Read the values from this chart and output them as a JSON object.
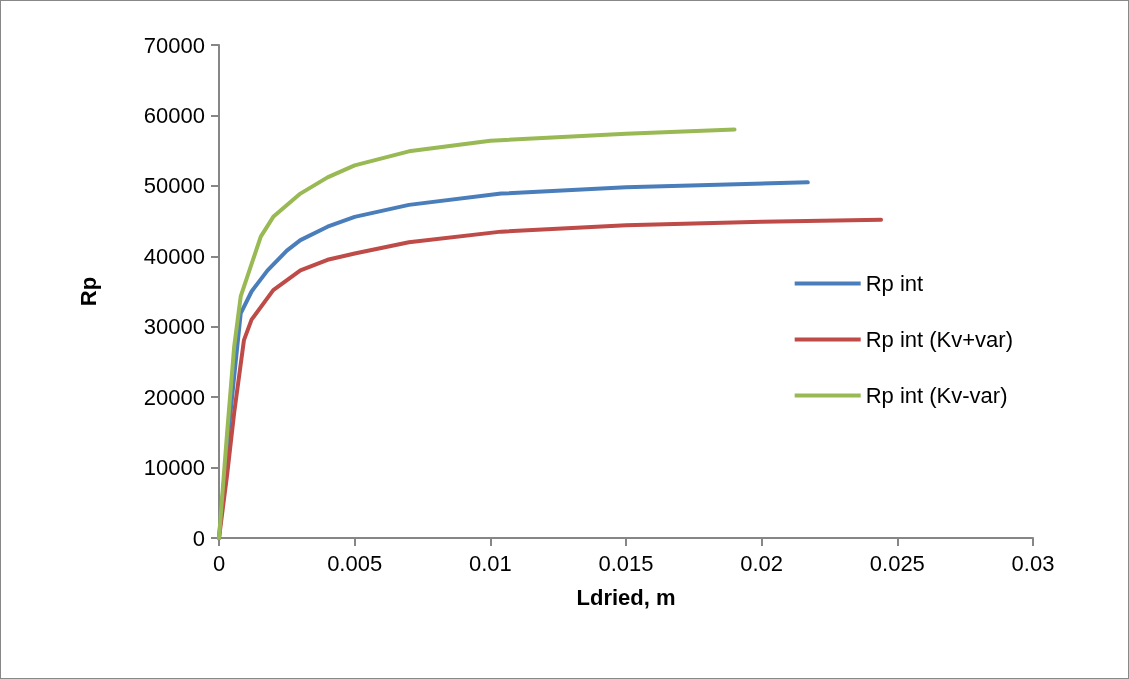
{
  "chart_data": {
    "type": "line",
    "xlabel": "Ldried, m",
    "ylabel": "Rp",
    "series": [
      {
        "name": "Rp int",
        "color": "#4a7ebb",
        "x": [
          0,
          0.0003,
          0.00056,
          0.0008,
          0.0012,
          0.00179,
          0.0025,
          0.003,
          0.004,
          0.005,
          0.007,
          0.0104,
          0.015,
          0.0217
        ],
        "values": [
          0,
          13000,
          23000,
          31900,
          35000,
          38000,
          40800,
          42300,
          44200,
          45600,
          47300,
          48900,
          49800,
          50500
        ]
      },
      {
        "name": "Rp int (Kv+var)",
        "color": "#be4b48",
        "x": [
          0,
          0.0003,
          0.00056,
          0.00092,
          0.0012,
          0.002,
          0.003,
          0.004,
          0.005,
          0.007,
          0.0104,
          0.015,
          0.02,
          0.0244
        ],
        "values": [
          0,
          9000,
          17800,
          28100,
          31000,
          35200,
          38000,
          39500,
          40400,
          42000,
          43500,
          44400,
          44900,
          45200
        ]
      },
      {
        "name": "Rp int (Kv-var)",
        "color": "#98b954",
        "x": [
          0,
          0.0003,
          0.00056,
          0.0008,
          0.00154,
          0.002,
          0.003,
          0.004,
          0.005,
          0.007,
          0.01,
          0.015,
          0.019
        ],
        "values": [
          0,
          15000,
          27200,
          34300,
          42800,
          45600,
          48900,
          51200,
          52900,
          54900,
          56400,
          57400,
          58000
        ]
      }
    ],
    "xlim": [
      0,
      0.03
    ],
    "xticks": [
      0,
      0.005,
      0.01,
      0.015,
      0.02,
      0.025,
      0.03
    ],
    "ylim": [
      0,
      70000
    ],
    "yticks": [
      0,
      10000,
      20000,
      30000,
      40000,
      50000,
      60000,
      70000
    ],
    "grid": false,
    "legend": "right",
    "marker": "none",
    "line_style": "solid"
  }
}
